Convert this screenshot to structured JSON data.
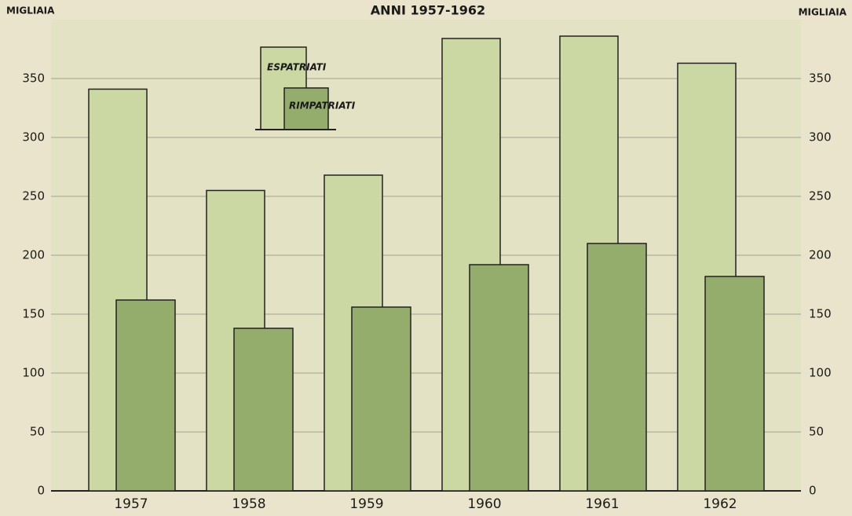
{
  "chart_data": {
    "type": "bar",
    "title": "ANNI 1957-1962",
    "y_label": "MIGLIAIA",
    "y2_label": "MIGLIAIA",
    "categories": [
      "1957",
      "1958",
      "1959",
      "1960",
      "1961",
      "1962"
    ],
    "series": [
      {
        "name": "ESPATRIATI",
        "color": "#cbd8a4",
        "values": [
          341,
          255,
          268,
          384,
          386,
          363
        ]
      },
      {
        "name": "RIMPATRIATI",
        "color": "#94ad6c",
        "values": [
          162,
          138,
          156,
          192,
          210,
          182
        ]
      }
    ],
    "ylim": [
      0,
      400
    ],
    "yticks": [
      0,
      50,
      100,
      150,
      200,
      250,
      300,
      350
    ],
    "grid": true
  }
}
